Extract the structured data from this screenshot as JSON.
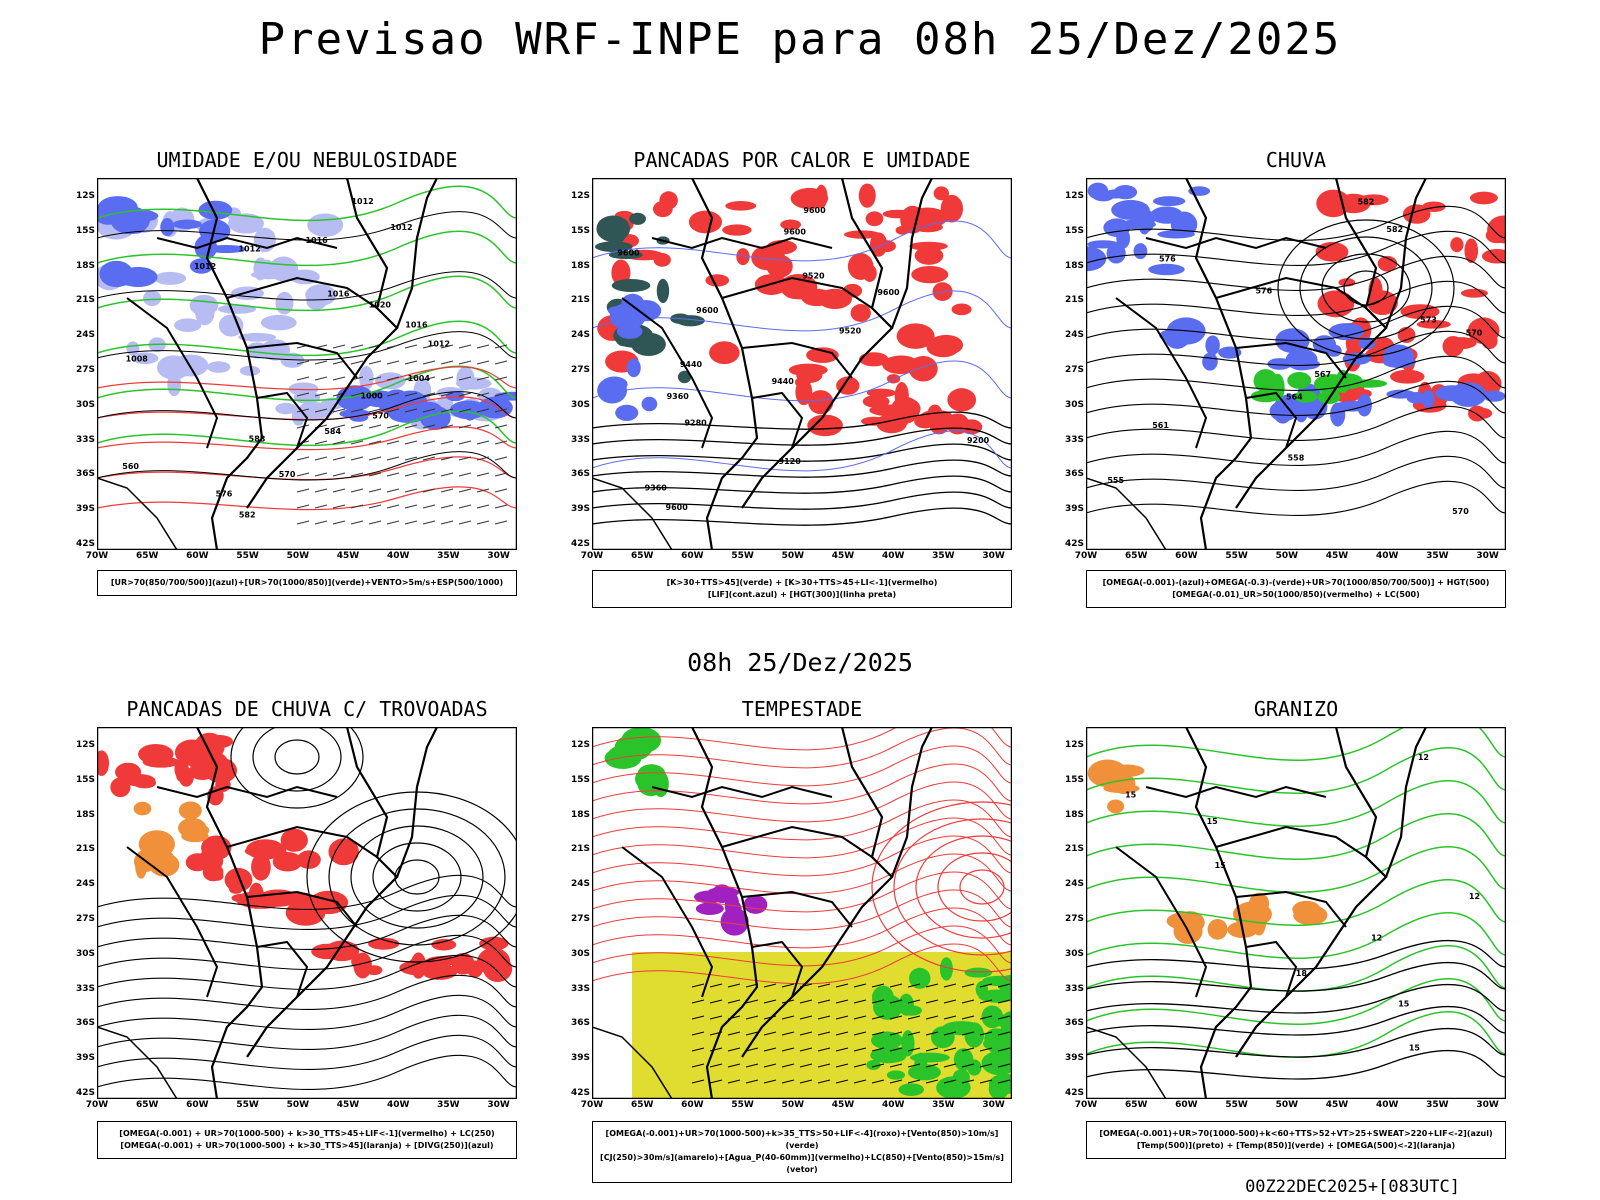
{
  "title": "Previsao WRF-INPE  para 08h 25/Dez/2025",
  "mid_label": "08h 25/Dez/2025",
  "footer": "00Z22DEC2025+[083UTC]",
  "lat_labels": [
    "12S",
    "15S",
    "18S",
    "21S",
    "24S",
    "27S",
    "30S",
    "33S",
    "36S",
    "39S",
    "42S"
  ],
  "lon_labels": [
    "70W",
    "65W",
    "60W",
    "55W",
    "50W",
    "45W",
    "40W",
    "35W",
    "30W"
  ],
  "panels": [
    {
      "title": "UMIDADE E/OU NEBULOSIDADE",
      "legend": [
        "[UR>70(850/700/500)](azul)+[UR>70(1000/850)](verde)+VENTO>5m/s+ESP(500/1000)"
      ]
    },
    {
      "title": "PANCADAS POR CALOR E UMIDADE",
      "legend": [
        "[K>30+TTS>45](verde) + [K>30+TTS>45+LI<-1](vermelho)",
        "[LIF](cont.azul) + [HGT(300)](linha preta)"
      ]
    },
    {
      "title": "CHUVA",
      "legend": [
        "[OMEGA(-0.001)-(azul)+OMEGA(-0.3)-(verde)+UR>70(1000/850/700/500)] + HGT(500)",
        "[OMEGA(-0.01)_UR>50(1000/850)(vermelho) + LC(500)"
      ]
    },
    {
      "title": "PANCADAS DE CHUVA C/ TROVOADAS",
      "legend": [
        "[OMEGA(-0.001) + UR>70(1000-500) + k>30_TTS>45+LIF<-1](vermelho) + LC(250)",
        "[OMEGA(-0.001) + UR>70(1000-500) + k>30_TTS>45](laranja) + [DIVG(250)](azul)"
      ]
    },
    {
      "title": "TEMPESTADE",
      "legend": [
        "[OMEGA(-0.001)+UR>70(1000-500)+k>35_TTS>50+LIF<-4](roxo)+[Vento(850)>10m/s](verde)",
        "[CJ(250)>30m/s](amarelo)+[Agua_P(40-60mm)](vermelho)+LC(850)+[Vento(850)>15m/s](vetor)"
      ]
    },
    {
      "title": "GRANIZO",
      "legend": [
        "[OMEGA(-0.001)+UR>70(1000-500)+k<60+TTS>52+VT>25+SWEAT>220+LIF<-2](azul)",
        "[Temp(500)](preto) + [Temp(850)](verde) + [OMEGA(500)<-2](laranja)"
      ]
    }
  ],
  "contour_labels": {
    "p1": [
      "1012",
      "1012",
      "1016",
      "1012",
      "1012",
      "1016",
      "1020",
      "1016",
      "1012",
      "1008",
      "1004",
      "1000",
      "570",
      "584",
      "588",
      "560",
      "570",
      "576",
      "582"
    ],
    "p2": [
      "9600",
      "9600",
      "9600",
      "9520",
      "9600",
      "9600",
      "9520",
      "9440",
      "9440",
      "9360",
      "9280",
      "9200",
      "9120",
      "9360",
      "9600"
    ],
    "p3": [
      "582",
      "582",
      "576",
      "576",
      "573",
      "570",
      "567",
      "564",
      "561",
      "558",
      "555",
      "570"
    ],
    "p6": [
      "12",
      "15",
      "15",
      "15",
      "12",
      "12",
      "18",
      "15",
      "15"
    ]
  },
  "colors": {
    "blue": "#5a6cf0",
    "lightblue": "#b7bdf3",
    "green": "#2ac42a",
    "red": "#f03a3a",
    "yellow": "#e0dc30",
    "orange": "#f0903a",
    "purple": "#a020c0",
    "dark": "#2f5555"
  }
}
